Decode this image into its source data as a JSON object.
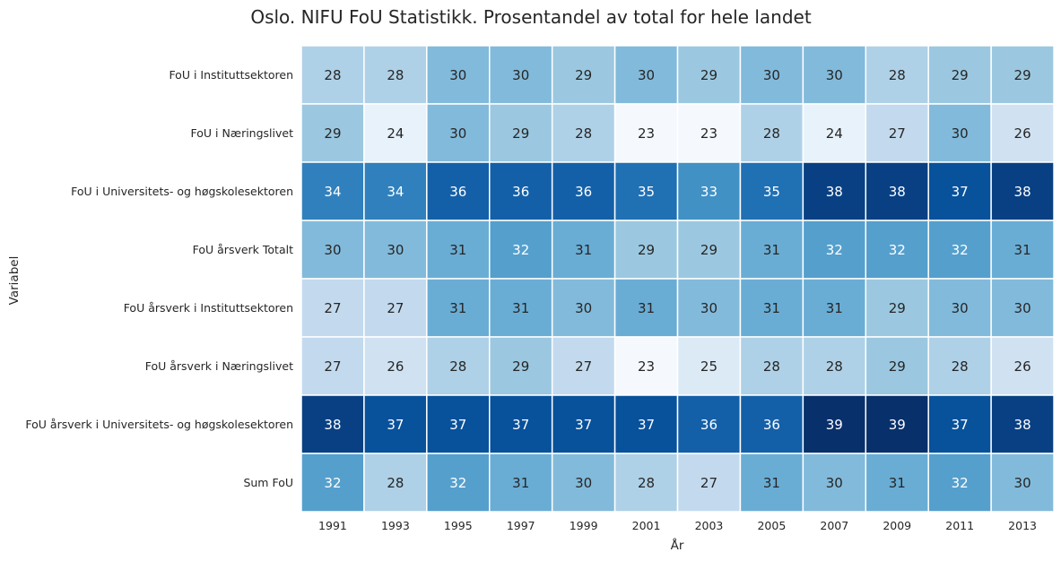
{
  "chart_data": {
    "type": "heatmap",
    "title": "Oslo. NIFU FoU Statistikk. Prosentandel av total for hele landet",
    "xlabel": "År",
    "ylabel": "Variabel",
    "x": [
      "1991",
      "1993",
      "1995",
      "1997",
      "1999",
      "2001",
      "2003",
      "2005",
      "2007",
      "2009",
      "2011",
      "2013"
    ],
    "y": [
      "FoU i Instituttsektoren",
      "FoU i Næringslivet",
      "FoU i Universitets- og høgskolesektoren",
      "FoU årsverk Totalt",
      "FoU årsverk i Instituttsektoren",
      "FoU årsverk i Næringslivet",
      "FoU årsverk i Universitets- og høgskolesektoren",
      "Sum FoU"
    ],
    "values": [
      [
        28,
        28,
        30,
        30,
        29,
        30,
        29,
        30,
        30,
        28,
        29,
        29
      ],
      [
        29,
        24,
        30,
        29,
        28,
        23,
        23,
        28,
        24,
        27,
        30,
        26
      ],
      [
        34,
        34,
        36,
        36,
        36,
        35,
        33,
        35,
        38,
        38,
        37,
        38
      ],
      [
        30,
        30,
        31,
        32,
        31,
        29,
        29,
        31,
        32,
        32,
        32,
        31
      ],
      [
        27,
        27,
        31,
        31,
        30,
        31,
        30,
        31,
        31,
        29,
        30,
        30
      ],
      [
        27,
        26,
        28,
        29,
        27,
        23,
        25,
        28,
        28,
        29,
        28,
        26
      ],
      [
        38,
        37,
        37,
        37,
        37,
        37,
        36,
        36,
        39,
        39,
        37,
        38
      ],
      [
        32,
        28,
        32,
        31,
        30,
        28,
        27,
        31,
        30,
        31,
        32,
        30
      ]
    ],
    "vmin": 22.8,
    "vmax": 39.0,
    "colormap": "Blues",
    "grid": false,
    "colorbar": false
  }
}
